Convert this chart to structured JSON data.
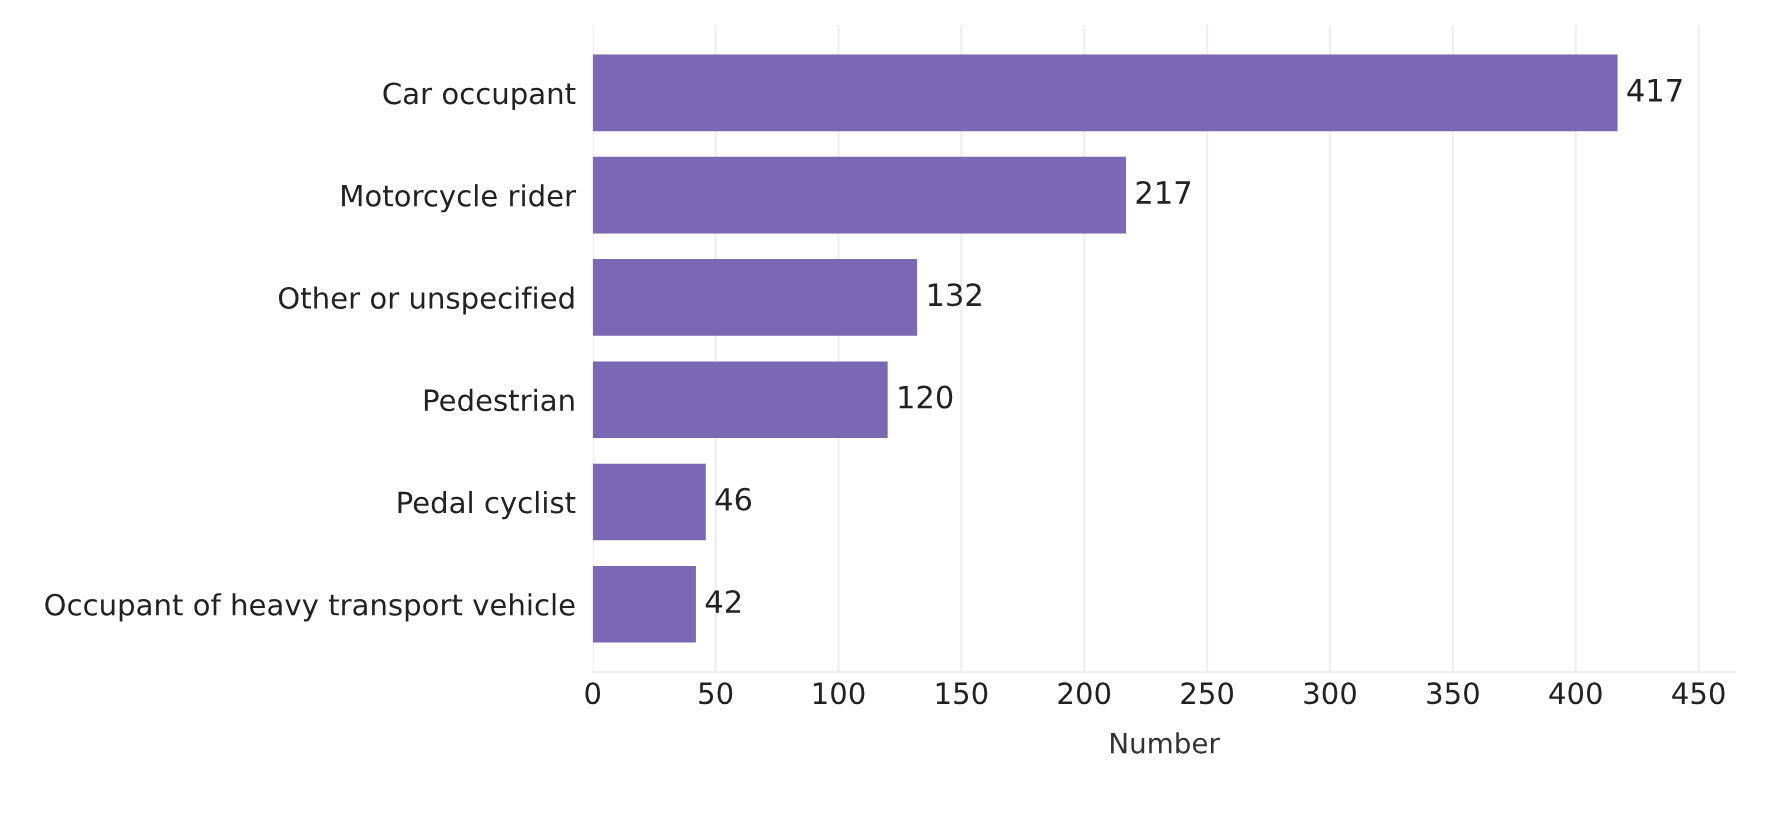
{
  "chart_data": {
    "type": "bar",
    "orientation": "horizontal",
    "xlabel": "Number",
    "categories": [
      "Car occupant",
      "Motorcycle rider",
      "Other or unspecified",
      "Pedestrian",
      "Pedal cyclist",
      "Occupant of heavy transport vehicle"
    ],
    "values": [
      417,
      217,
      132,
      120,
      46,
      42
    ],
    "color": "#7b68b4",
    "xlim": [
      0,
      465
    ],
    "xticks": [
      0,
      50,
      100,
      150,
      200,
      250,
      300,
      350,
      400,
      450
    ],
    "grid": "x",
    "data_labels": true
  }
}
